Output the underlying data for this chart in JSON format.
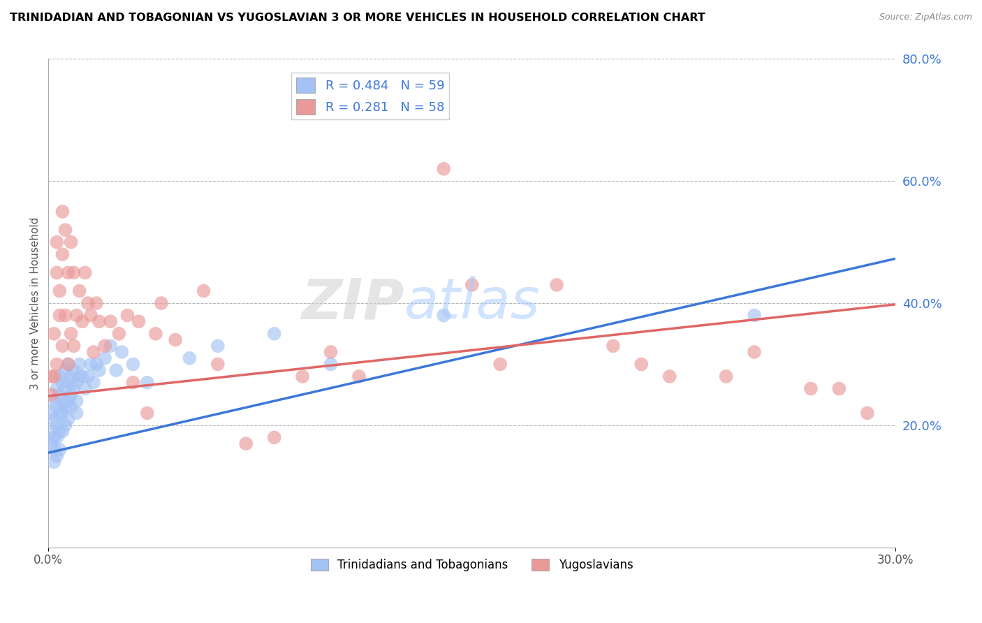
{
  "title": "TRINIDADIAN AND TOBAGONIAN VS YUGOSLAVIAN 3 OR MORE VEHICLES IN HOUSEHOLD CORRELATION CHART",
  "source": "Source: ZipAtlas.com",
  "ylabel": "3 or more Vehicles in Household",
  "xlim": [
    0.0,
    0.3
  ],
  "ylim": [
    0.0,
    0.8
  ],
  "xtick_positions": [
    0.0,
    0.3
  ],
  "xtick_labels": [
    "0.0%",
    "30.0%"
  ],
  "ytick_positions": [
    0.2,
    0.4,
    0.6,
    0.8
  ],
  "ytick_labels": [
    "20.0%",
    "40.0%",
    "60.0%",
    "80.0%"
  ],
  "blue_color": "#a4c2f4",
  "pink_color": "#ea9999",
  "blue_line_color": "#3c78d8",
  "pink_line_color": "#e06666",
  "legend_text_color": "#3c78d8",
  "title_color": "#000000",
  "grid_color": "#b7b7b7",
  "blue_R": 0.484,
  "blue_N": 59,
  "pink_R": 0.281,
  "pink_N": 58,
  "blue_label": "Trinidadians and Tobagonians",
  "pink_label": "Yugoslavians",
  "blue_line_x0": 0.0,
  "blue_line_y0": 0.155,
  "blue_line_x1": 0.3,
  "blue_line_y1": 0.473,
  "pink_line_x0": 0.0,
  "pink_line_y0": 0.248,
  "pink_line_x1": 0.3,
  "pink_line_y1": 0.398,
  "blue_scatter_x": [
    0.001,
    0.001,
    0.001,
    0.002,
    0.002,
    0.002,
    0.002,
    0.002,
    0.003,
    0.003,
    0.003,
    0.003,
    0.003,
    0.004,
    0.004,
    0.004,
    0.004,
    0.004,
    0.005,
    0.005,
    0.005,
    0.005,
    0.006,
    0.006,
    0.006,
    0.006,
    0.007,
    0.007,
    0.007,
    0.007,
    0.008,
    0.008,
    0.008,
    0.009,
    0.009,
    0.01,
    0.01,
    0.01,
    0.011,
    0.011,
    0.012,
    0.013,
    0.014,
    0.015,
    0.016,
    0.017,
    0.018,
    0.02,
    0.022,
    0.024,
    0.026,
    0.03,
    0.035,
    0.05,
    0.06,
    0.08,
    0.1,
    0.14,
    0.25
  ],
  "blue_scatter_y": [
    0.22,
    0.19,
    0.17,
    0.24,
    0.21,
    0.18,
    0.16,
    0.14,
    0.26,
    0.23,
    0.2,
    0.18,
    0.15,
    0.28,
    0.25,
    0.22,
    0.19,
    0.16,
    0.27,
    0.24,
    0.22,
    0.19,
    0.29,
    0.26,
    0.23,
    0.2,
    0.3,
    0.27,
    0.24,
    0.21,
    0.28,
    0.25,
    0.23,
    0.29,
    0.26,
    0.27,
    0.24,
    0.22,
    0.3,
    0.28,
    0.28,
    0.26,
    0.28,
    0.3,
    0.27,
    0.3,
    0.29,
    0.31,
    0.33,
    0.29,
    0.32,
    0.3,
    0.27,
    0.31,
    0.33,
    0.35,
    0.3,
    0.38,
    0.38
  ],
  "pink_scatter_x": [
    0.001,
    0.001,
    0.002,
    0.002,
    0.003,
    0.003,
    0.003,
    0.004,
    0.004,
    0.005,
    0.005,
    0.005,
    0.006,
    0.006,
    0.007,
    0.007,
    0.008,
    0.008,
    0.009,
    0.009,
    0.01,
    0.011,
    0.012,
    0.013,
    0.014,
    0.015,
    0.016,
    0.017,
    0.018,
    0.02,
    0.022,
    0.025,
    0.028,
    0.03,
    0.032,
    0.035,
    0.038,
    0.04,
    0.045,
    0.055,
    0.06,
    0.07,
    0.08,
    0.09,
    0.1,
    0.11,
    0.14,
    0.15,
    0.16,
    0.18,
    0.2,
    0.21,
    0.22,
    0.24,
    0.25,
    0.27,
    0.28,
    0.29
  ],
  "pink_scatter_y": [
    0.28,
    0.25,
    0.35,
    0.28,
    0.5,
    0.45,
    0.3,
    0.42,
    0.38,
    0.55,
    0.48,
    0.33,
    0.52,
    0.38,
    0.45,
    0.3,
    0.5,
    0.35,
    0.45,
    0.33,
    0.38,
    0.42,
    0.37,
    0.45,
    0.4,
    0.38,
    0.32,
    0.4,
    0.37,
    0.33,
    0.37,
    0.35,
    0.38,
    0.27,
    0.37,
    0.22,
    0.35,
    0.4,
    0.34,
    0.42,
    0.3,
    0.17,
    0.18,
    0.28,
    0.32,
    0.28,
    0.62,
    0.43,
    0.3,
    0.43,
    0.33,
    0.3,
    0.28,
    0.28,
    0.32,
    0.26,
    0.26,
    0.22
  ]
}
